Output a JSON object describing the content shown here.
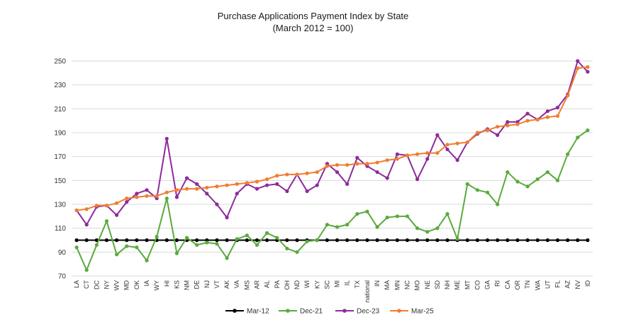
{
  "chart_data": {
    "type": "line",
    "title": "Purchase Applications Payment Index by State",
    "subtitle": "(March 2012 = 100)",
    "xlabel": "",
    "ylabel": "",
    "ylim": [
      70,
      250
    ],
    "yticks": [
      70,
      90,
      110,
      130,
      150,
      170,
      190,
      210,
      230,
      250
    ],
    "grid": "horizontal",
    "legend": "bottom",
    "categories": [
      "LA",
      "CT",
      "DC",
      "NY",
      "WV",
      "MD",
      "OK",
      "IA",
      "WY",
      "HI",
      "KS",
      "NM",
      "DE",
      "NJ",
      "VT",
      "AK",
      "VA",
      "MS",
      "AR",
      "AL",
      "PA",
      "OH",
      "ND",
      "WI",
      "KY",
      "SC",
      "MI",
      "IL",
      "TX",
      "national",
      "IN",
      "MA",
      "MN",
      "NC",
      "MO",
      "NE",
      "SD",
      "NH",
      "ME",
      "MT",
      "CO",
      "GA",
      "RI",
      "CA",
      "OR",
      "TN",
      "WA",
      "UT",
      "FL",
      "AZ",
      "NV",
      "ID"
    ],
    "series": [
      {
        "name": "Mar-12",
        "color": "#000000",
        "values": [
          100,
          100,
          100,
          100,
          100,
          100,
          100,
          100,
          100,
          100,
          100,
          100,
          100,
          100,
          100,
          100,
          100,
          100,
          100,
          100,
          100,
          100,
          100,
          100,
          100,
          100,
          100,
          100,
          100,
          100,
          100,
          100,
          100,
          100,
          100,
          100,
          100,
          100,
          100,
          100,
          100,
          100,
          100,
          100,
          100,
          100,
          100,
          100,
          100,
          100,
          100,
          100
        ]
      },
      {
        "name": "Dec-21",
        "color": "#5aaa3c",
        "values": [
          94,
          75,
          96,
          116,
          88,
          95,
          94,
          83,
          103,
          135,
          89,
          102,
          96,
          98,
          97,
          85,
          101,
          104,
          96,
          106,
          102,
          93,
          90,
          99,
          100,
          113,
          111,
          113,
          122,
          124,
          111,
          119,
          120,
          120,
          110,
          107,
          110,
          122,
          101,
          147,
          142,
          140,
          130,
          157,
          149,
          145,
          151,
          157,
          150,
          172,
          186,
          192
        ]
      },
      {
        "name": "Dec-23",
        "color": "#8e2b9c",
        "values": [
          125,
          113,
          128,
          129,
          121,
          132,
          139,
          142,
          135,
          185,
          136,
          152,
          147,
          139,
          130,
          119,
          139,
          147,
          143,
          146,
          147,
          141,
          155,
          141,
          146,
          164,
          157,
          147,
          169,
          162,
          157,
          152,
          172,
          171,
          151,
          168,
          188,
          176,
          167,
          182,
          189,
          193,
          188,
          199,
          199,
          206,
          201,
          208,
          211,
          222,
          250,
          241
        ]
      },
      {
        "name": "Mar-25",
        "color": "#f07d32",
        "values": [
          125,
          126,
          129,
          129,
          131,
          135,
          136,
          137,
          137,
          140,
          142,
          143,
          143,
          144,
          145,
          146,
          147,
          148,
          149,
          151,
          154,
          155,
          155,
          156,
          157,
          162,
          163,
          163,
          164,
          164,
          165,
          167,
          168,
          171,
          172,
          173,
          173,
          180,
          181,
          182,
          190,
          192,
          195,
          196,
          197,
          200,
          201,
          203,
          204,
          221,
          244,
          245
        ]
      }
    ]
  }
}
